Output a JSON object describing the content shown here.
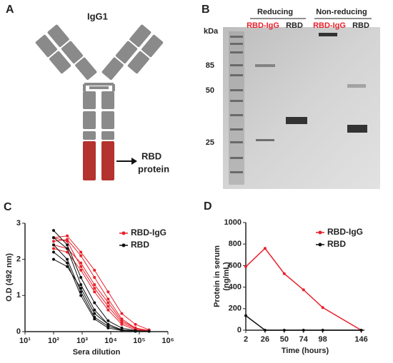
{
  "panel_a": {
    "label": "A",
    "title": "IgG1",
    "annotation": [
      "RBD",
      "protein"
    ]
  },
  "panel_b": {
    "label": "B",
    "unit": "kDa",
    "groups": [
      "Reducing",
      "Non-reducing"
    ],
    "lanes": [
      "RBD-IgG",
      "RBD",
      "RBD-IgG",
      "RBD"
    ],
    "markers": [
      "85",
      "50",
      "25"
    ]
  },
  "chart_data": [
    {
      "type": "line",
      "label": "C",
      "xlabel": "Sera dilution",
      "ylabel": "O.D (492 nm)",
      "xscale": "log",
      "x": [
        100,
        300,
        900,
        2700,
        8100,
        24300,
        72900,
        218700
      ],
      "xlim": [
        10,
        1000000
      ],
      "xticks": [
        {
          "value": 10,
          "label": "10¹"
        },
        {
          "value": 100,
          "label": "10²"
        },
        {
          "value": 1000,
          "label": "10³"
        },
        {
          "value": 10000,
          "label": "10⁴"
        },
        {
          "value": 100000,
          "label": "10⁵"
        },
        {
          "value": 1000000,
          "label": "10⁶"
        }
      ],
      "ylim": [
        0,
        3
      ],
      "yticks": [
        0,
        1,
        2,
        3
      ],
      "legend": "upper right",
      "series": [
        {
          "name": "RBD-IgG",
          "color": "#e8202a",
          "replicates": [
            [
              2.6,
              2.65,
              2.2,
              1.7,
              1.1,
              0.5,
              0.2,
              0.05
            ],
            [
              2.5,
              2.55,
              2.1,
              1.5,
              0.9,
              0.35,
              0.1,
              0.03
            ],
            [
              2.4,
              2.3,
              1.9,
              1.3,
              0.8,
              0.3,
              0.1,
              0.02
            ],
            [
              2.3,
              2.2,
              1.7,
              1.1,
              0.6,
              0.2,
              0.05,
              0.02
            ],
            [
              2.6,
              2.5,
              1.8,
              1.2,
              0.7,
              0.25,
              0.08,
              0.02
            ]
          ]
        },
        {
          "name": "RBD",
          "color": "#111111",
          "replicates": [
            [
              2.8,
              2.4,
              1.5,
              0.8,
              0.3,
              0.1,
              0.03,
              0.01
            ],
            [
              2.6,
              2.3,
              1.3,
              0.6,
              0.2,
              0.05,
              0.02,
              0.01
            ],
            [
              2.4,
              2.0,
              1.1,
              0.4,
              0.15,
              0.04,
              0.01,
              0.01
            ],
            [
              2.2,
              1.9,
              1.0,
              0.35,
              0.1,
              0.03,
              0.01,
              0.01
            ],
            [
              2.0,
              1.8,
              1.2,
              0.5,
              0.2,
              0.05,
              0.02,
              0.01
            ]
          ]
        }
      ]
    },
    {
      "type": "line",
      "label": "D",
      "xlabel": "Time (hours)",
      "ylabel": [
        "Protein in serum",
        "(ng/mL)"
      ],
      "x": [
        2,
        26,
        50,
        74,
        98,
        146
      ],
      "xlim": [
        2,
        150
      ],
      "xticks": [
        2,
        26,
        50,
        74,
        98,
        146
      ],
      "ylim": [
        0,
        1000
      ],
      "yticks": [
        0,
        200,
        400,
        600,
        800,
        1000
      ],
      "legend": "upper right",
      "series": [
        {
          "name": "RBD-IgG",
          "color": "#e8202a",
          "values": [
            590,
            760,
            525,
            375,
            210,
            0
          ]
        },
        {
          "name": "RBD",
          "color": "#111111",
          "values": [
            135,
            0,
            0,
            0,
            0,
            0
          ]
        }
      ]
    }
  ]
}
